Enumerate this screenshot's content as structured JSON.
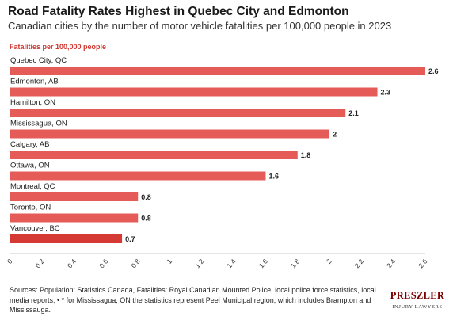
{
  "header": {
    "title": "Road Fatality Rates Highest in Quebec City and Edmonton",
    "subtitle": "Canadian cities by the number of motor vehicle fatalities per 100,000 people in 2023"
  },
  "chart_data": {
    "type": "bar",
    "orientation": "horizontal",
    "unit_label": "Fatalities per 100,000 people",
    "categories": [
      "Quebec City, QC",
      "Edmonton, AB",
      "Hamilton, ON",
      "Mississagua, ON",
      "Calgary, AB",
      "Ottawa, ON",
      "Montreal, QC",
      "Toronto, ON",
      "Vancouver, BC"
    ],
    "values": [
      2.6,
      2.3,
      2.1,
      2,
      1.8,
      1.6,
      0.8,
      0.8,
      0.7
    ],
    "value_labels": [
      "2.6",
      "2.3",
      "2.1",
      "2",
      "1.8",
      "1.6",
      "0.8",
      "0.8",
      "0.7"
    ],
    "highlighted_category": "Vancouver, BC",
    "xlim": [
      0,
      2.6
    ],
    "x_ticks": [
      "0",
      "0.2",
      "0.4",
      "0.6",
      "0.8",
      "1",
      "1.2",
      "1.4",
      "1.6",
      "1.8",
      "2",
      "2.2",
      "2.4",
      "2.6"
    ],
    "grid": false,
    "legend": "none",
    "colors": {
      "bar": "#e45b57",
      "bar_highlight": "#d43a33",
      "unit_label": "#d0352f",
      "text": "#222222",
      "axis": "#c8c8c8"
    }
  },
  "footer": {
    "sources": "Sources: Population: Statistics Canada, Fatalities: Royal Canadian Mounted Police, local police force statistics, local media reports; • * for Mississagua, ON the statistics represent Peel Municipal region, which includes Brampton and Mississauga.",
    "logo_name": "PRESZLER",
    "logo_tagline": "INJURY LAWYERS"
  }
}
